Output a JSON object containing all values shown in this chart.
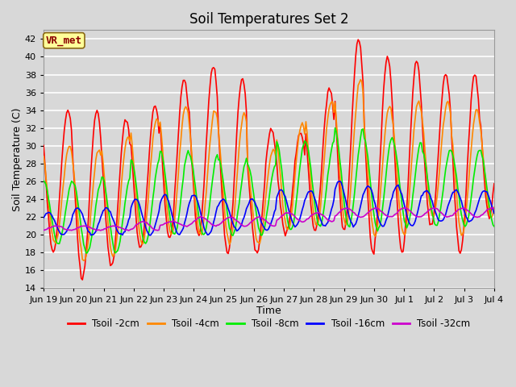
{
  "title": "Soil Temperatures Set 2",
  "xlabel": "Time",
  "ylabel": "Soil Temperature (C)",
  "ylim": [
    14,
    43
  ],
  "yticks": [
    14,
    16,
    18,
    20,
    22,
    24,
    26,
    28,
    30,
    32,
    34,
    36,
    38,
    40,
    42
  ],
  "background_color": "#d8d8d8",
  "plot_bg_color": "#d8d8d8",
  "grid_color": "#ffffff",
  "title_fontsize": 12,
  "label_fontsize": 9,
  "tick_fontsize": 8,
  "annotation_text": "VR_met",
  "annotation_color": "#8b0000",
  "annotation_bg": "#ffff99",
  "series": [
    {
      "label": "Tsoil -2cm",
      "color": "#ff0000",
      "lw": 1.2
    },
    {
      "label": "Tsoil -4cm",
      "color": "#ff8800",
      "lw": 1.2
    },
    {
      "label": "Tsoil -8cm",
      "color": "#00ee00",
      "lw": 1.2
    },
    {
      "label": "Tsoil -16cm",
      "color": "#0000ff",
      "lw": 1.2
    },
    {
      "label": "Tsoil -32cm",
      "color": "#cc00cc",
      "lw": 1.2
    }
  ],
  "xtick_labels": [
    "Jun 19",
    "Jun 20",
    "Jun 21",
    "Jun 22",
    "Jun 23",
    "Jun 24",
    "Jun 25",
    "Jun 26",
    "Jun 27",
    "Jun 28",
    "Jun 29",
    "Jun 30",
    "Jul 1",
    "Jul 2",
    "Jul 3",
    "Jul 4"
  ],
  "n_days": 15.5
}
